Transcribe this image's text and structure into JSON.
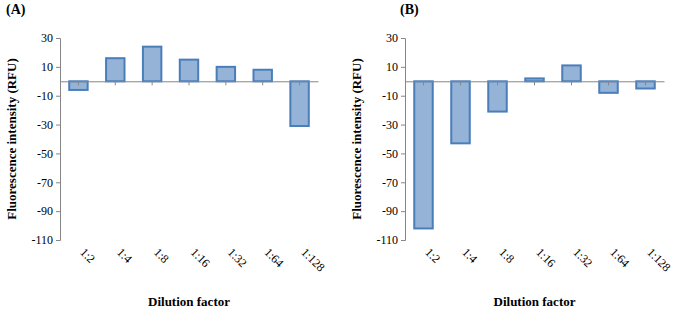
{
  "chart_data": [
    {
      "type": "bar",
      "title": "(A)",
      "categories": [
        "1:2",
        "1:4",
        "1:8",
        "1:16",
        "1:32",
        "1:64",
        "1:128"
      ],
      "values": [
        -6,
        16,
        24,
        15,
        10,
        8,
        -31
      ],
      "color": "#95b3d7",
      "x_label": "Dilution factor",
      "y_label": "Fluorescence intensity (RFU)",
      "ylim": [
        -110,
        30
      ],
      "yticks": [
        -110,
        -90,
        -70,
        -50,
        -30,
        -10,
        10,
        30
      ],
      "grid": false
    },
    {
      "type": "bar",
      "title": "(B)",
      "categories": [
        "1:2",
        "1:4",
        "1:8",
        "1:16",
        "1:32",
        "1:64",
        "1:128"
      ],
      "values": [
        -102,
        -43,
        -21,
        2,
        11,
        -8,
        -5
      ],
      "color": "#95b3d7",
      "x_label": "Dilution factor",
      "y_label": "Fluorescence intensity (RFU)",
      "ylim": [
        -110,
        30
      ],
      "yticks": [
        -110,
        -90,
        -70,
        -50,
        -30,
        -10,
        10,
        30
      ],
      "grid": false
    }
  ]
}
